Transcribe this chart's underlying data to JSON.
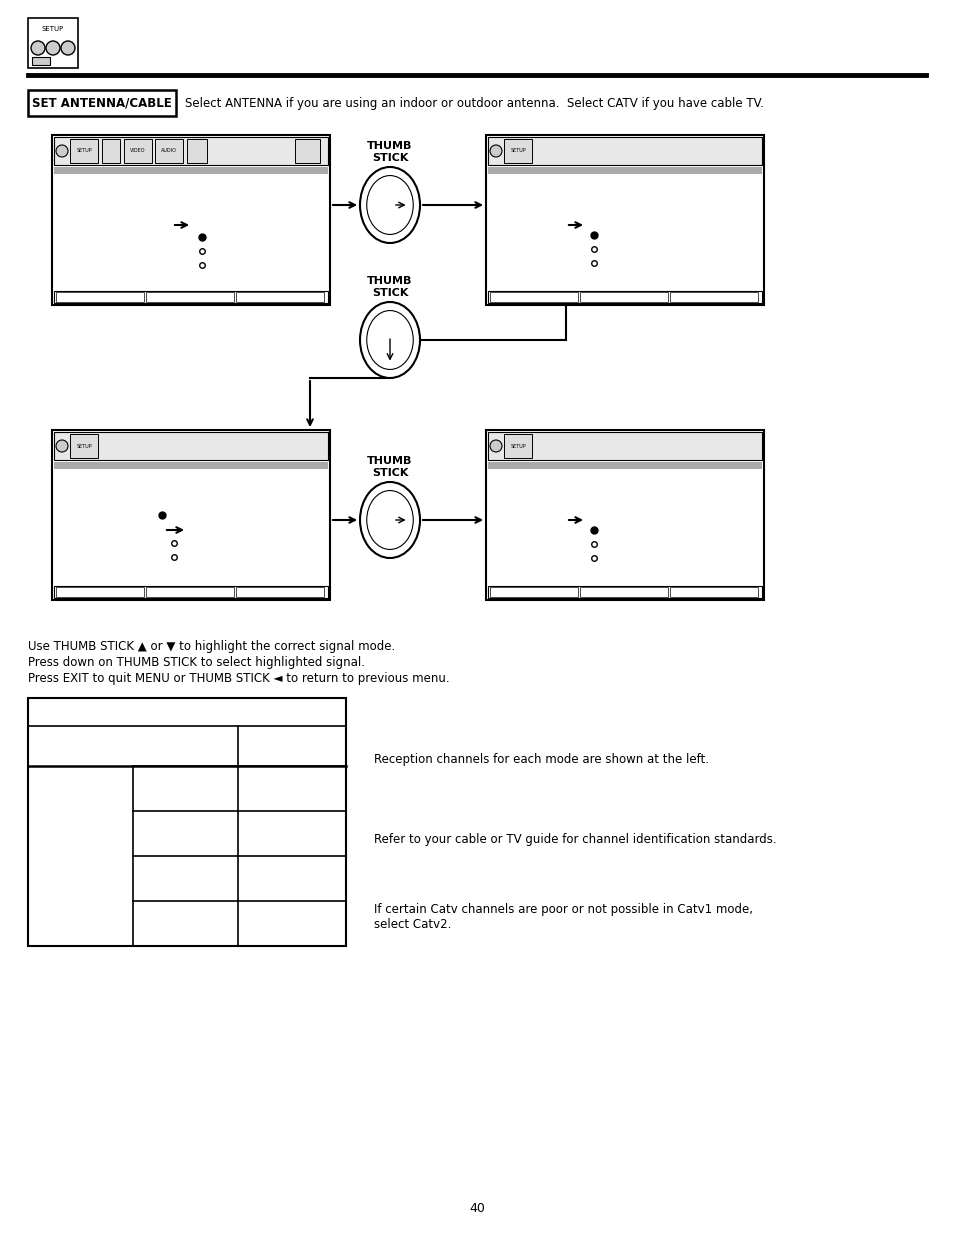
{
  "page_number": "40",
  "bg_color": "#ffffff",
  "set_antenna_label": "SET ANTENNA/CABLE",
  "set_antenna_desc": "Select ANTENNA if you are using an indoor or outdoor antenna.  Select CATV if you have cable TV.",
  "instructions": [
    "Use THUMB STICK ▲ or ▼ to highlight the correct signal mode.",
    "Press down on THUMB STICK to select highlighted signal.",
    "Press EXIT to quit MENU or THUMB STICK ◄ to return to previous menu."
  ],
  "caption1": "Reception channels for each mode are shown at the left.",
  "caption2": "Refer to your cable or TV guide for channel identification standards.",
  "caption3": "If certain Catv channels are poor or not possible in Catv1 mode,\nselect Catv2."
}
